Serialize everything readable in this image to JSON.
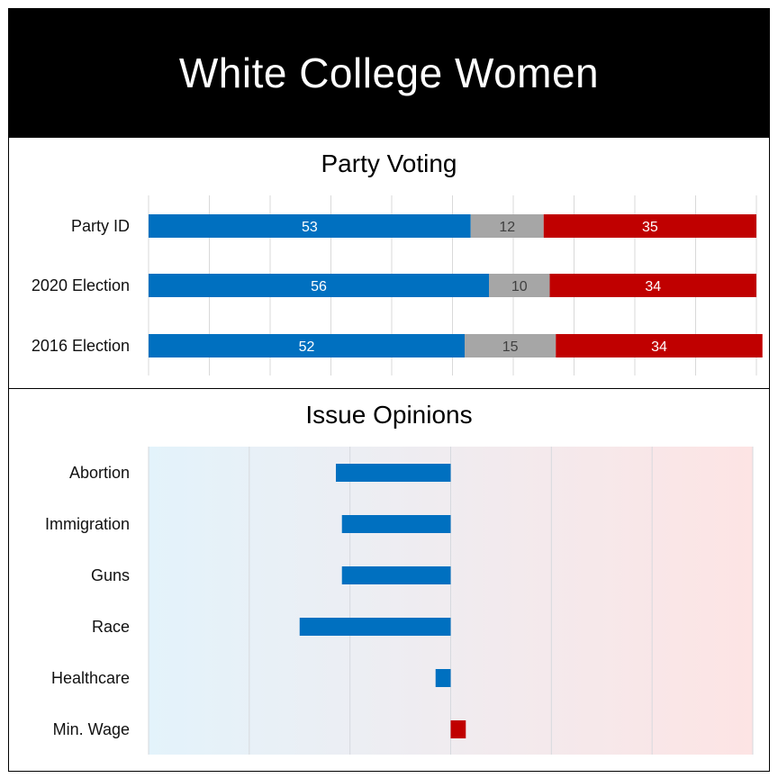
{
  "header": {
    "title": "White College Women"
  },
  "chart_data": [
    {
      "type": "bar",
      "orientation": "horizontal-stacked",
      "title": "Party Voting",
      "categories": [
        "Party ID",
        "2020 Election",
        "2016 Election"
      ],
      "series": [
        {
          "values": [
            53,
            56,
            52
          ],
          "color": "#0070c0",
          "label_color": "#ffffff"
        },
        {
          "values": [
            12,
            10,
            15
          ],
          "color": "#a6a6a6",
          "label_color": "#404040"
        },
        {
          "values": [
            35,
            34,
            34
          ],
          "color": "#c00000",
          "label_color": "#ffffff"
        }
      ],
      "xlim": [
        0,
        100
      ],
      "grid": true
    },
    {
      "type": "bar",
      "orientation": "horizontal-diverging",
      "title": "Issue Opinions",
      "categories": [
        "Abortion",
        "Immigration",
        "Guns",
        "Race",
        "Healthcare",
        "Min. Wage"
      ],
      "values": [
        -0.38,
        -0.36,
        -0.36,
        -0.5,
        -0.05,
        0.05
      ],
      "xlim": [
        -1,
        1
      ],
      "grid": true,
      "negative_color": "#0070c0",
      "positive_color": "#c00000",
      "background_gradient": [
        "#e3f3fb",
        "#fde4e4"
      ]
    }
  ]
}
